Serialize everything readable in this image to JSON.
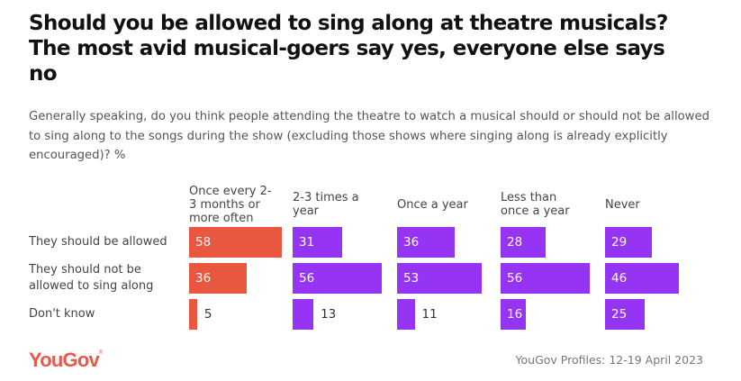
{
  "chart_data": {
    "type": "bar",
    "orientation": "horizontal",
    "layout": "small-multiples",
    "title": "Should you be allowed to sing along at theatre musicals? The most avid musical-goers say yes, everyone else says no",
    "subtitle": "Generally speaking, do you think people attending the theatre to watch a musical should or should not be allowed to sing along to the songs during the show (excluding those shows where singing along is already explicitly encouraged)? %",
    "categories": [
      "They should be allowed",
      "They should not be allowed to sing along",
      "Don't know"
    ],
    "series": [
      {
        "name": "Once every 2-3 months or more often",
        "label_lines": [
          "Once every 2-",
          "3 months or",
          "more often"
        ],
        "color": "#ea5740",
        "values": [
          58,
          36,
          5
        ]
      },
      {
        "name": "2-3 times a year",
        "label_lines": [
          "2-3 times a",
          "year"
        ],
        "color": "#9534f2",
        "values": [
          31,
          56,
          13
        ]
      },
      {
        "name": "Once a year",
        "label_lines": [
          "Once a year"
        ],
        "color": "#9534f2",
        "values": [
          36,
          53,
          11
        ]
      },
      {
        "name": "Less than once a year",
        "label_lines": [
          "Less than",
          "once a year"
        ],
        "color": "#9534f2",
        "values": [
          28,
          56,
          16
        ]
      },
      {
        "name": "Never",
        "label_lines": [
          "Never"
        ],
        "color": "#9534f2",
        "values": [
          29,
          46,
          25
        ]
      }
    ],
    "xlim": [
      0,
      58
    ],
    "grid": false,
    "legend": "none"
  },
  "row_label_lines": [
    [
      "They should be allowed"
    ],
    [
      "They should not be",
      "allowed to sing along"
    ],
    [
      "Don't know"
    ]
  ],
  "footer": {
    "logo": "YouGov",
    "logo_mark": "®",
    "source": "YouGov Profiles: 12-19 April 2023"
  },
  "colors": {
    "highlight": "#ea5740",
    "bar": "#9534f2",
    "logo": "#e9584a"
  }
}
